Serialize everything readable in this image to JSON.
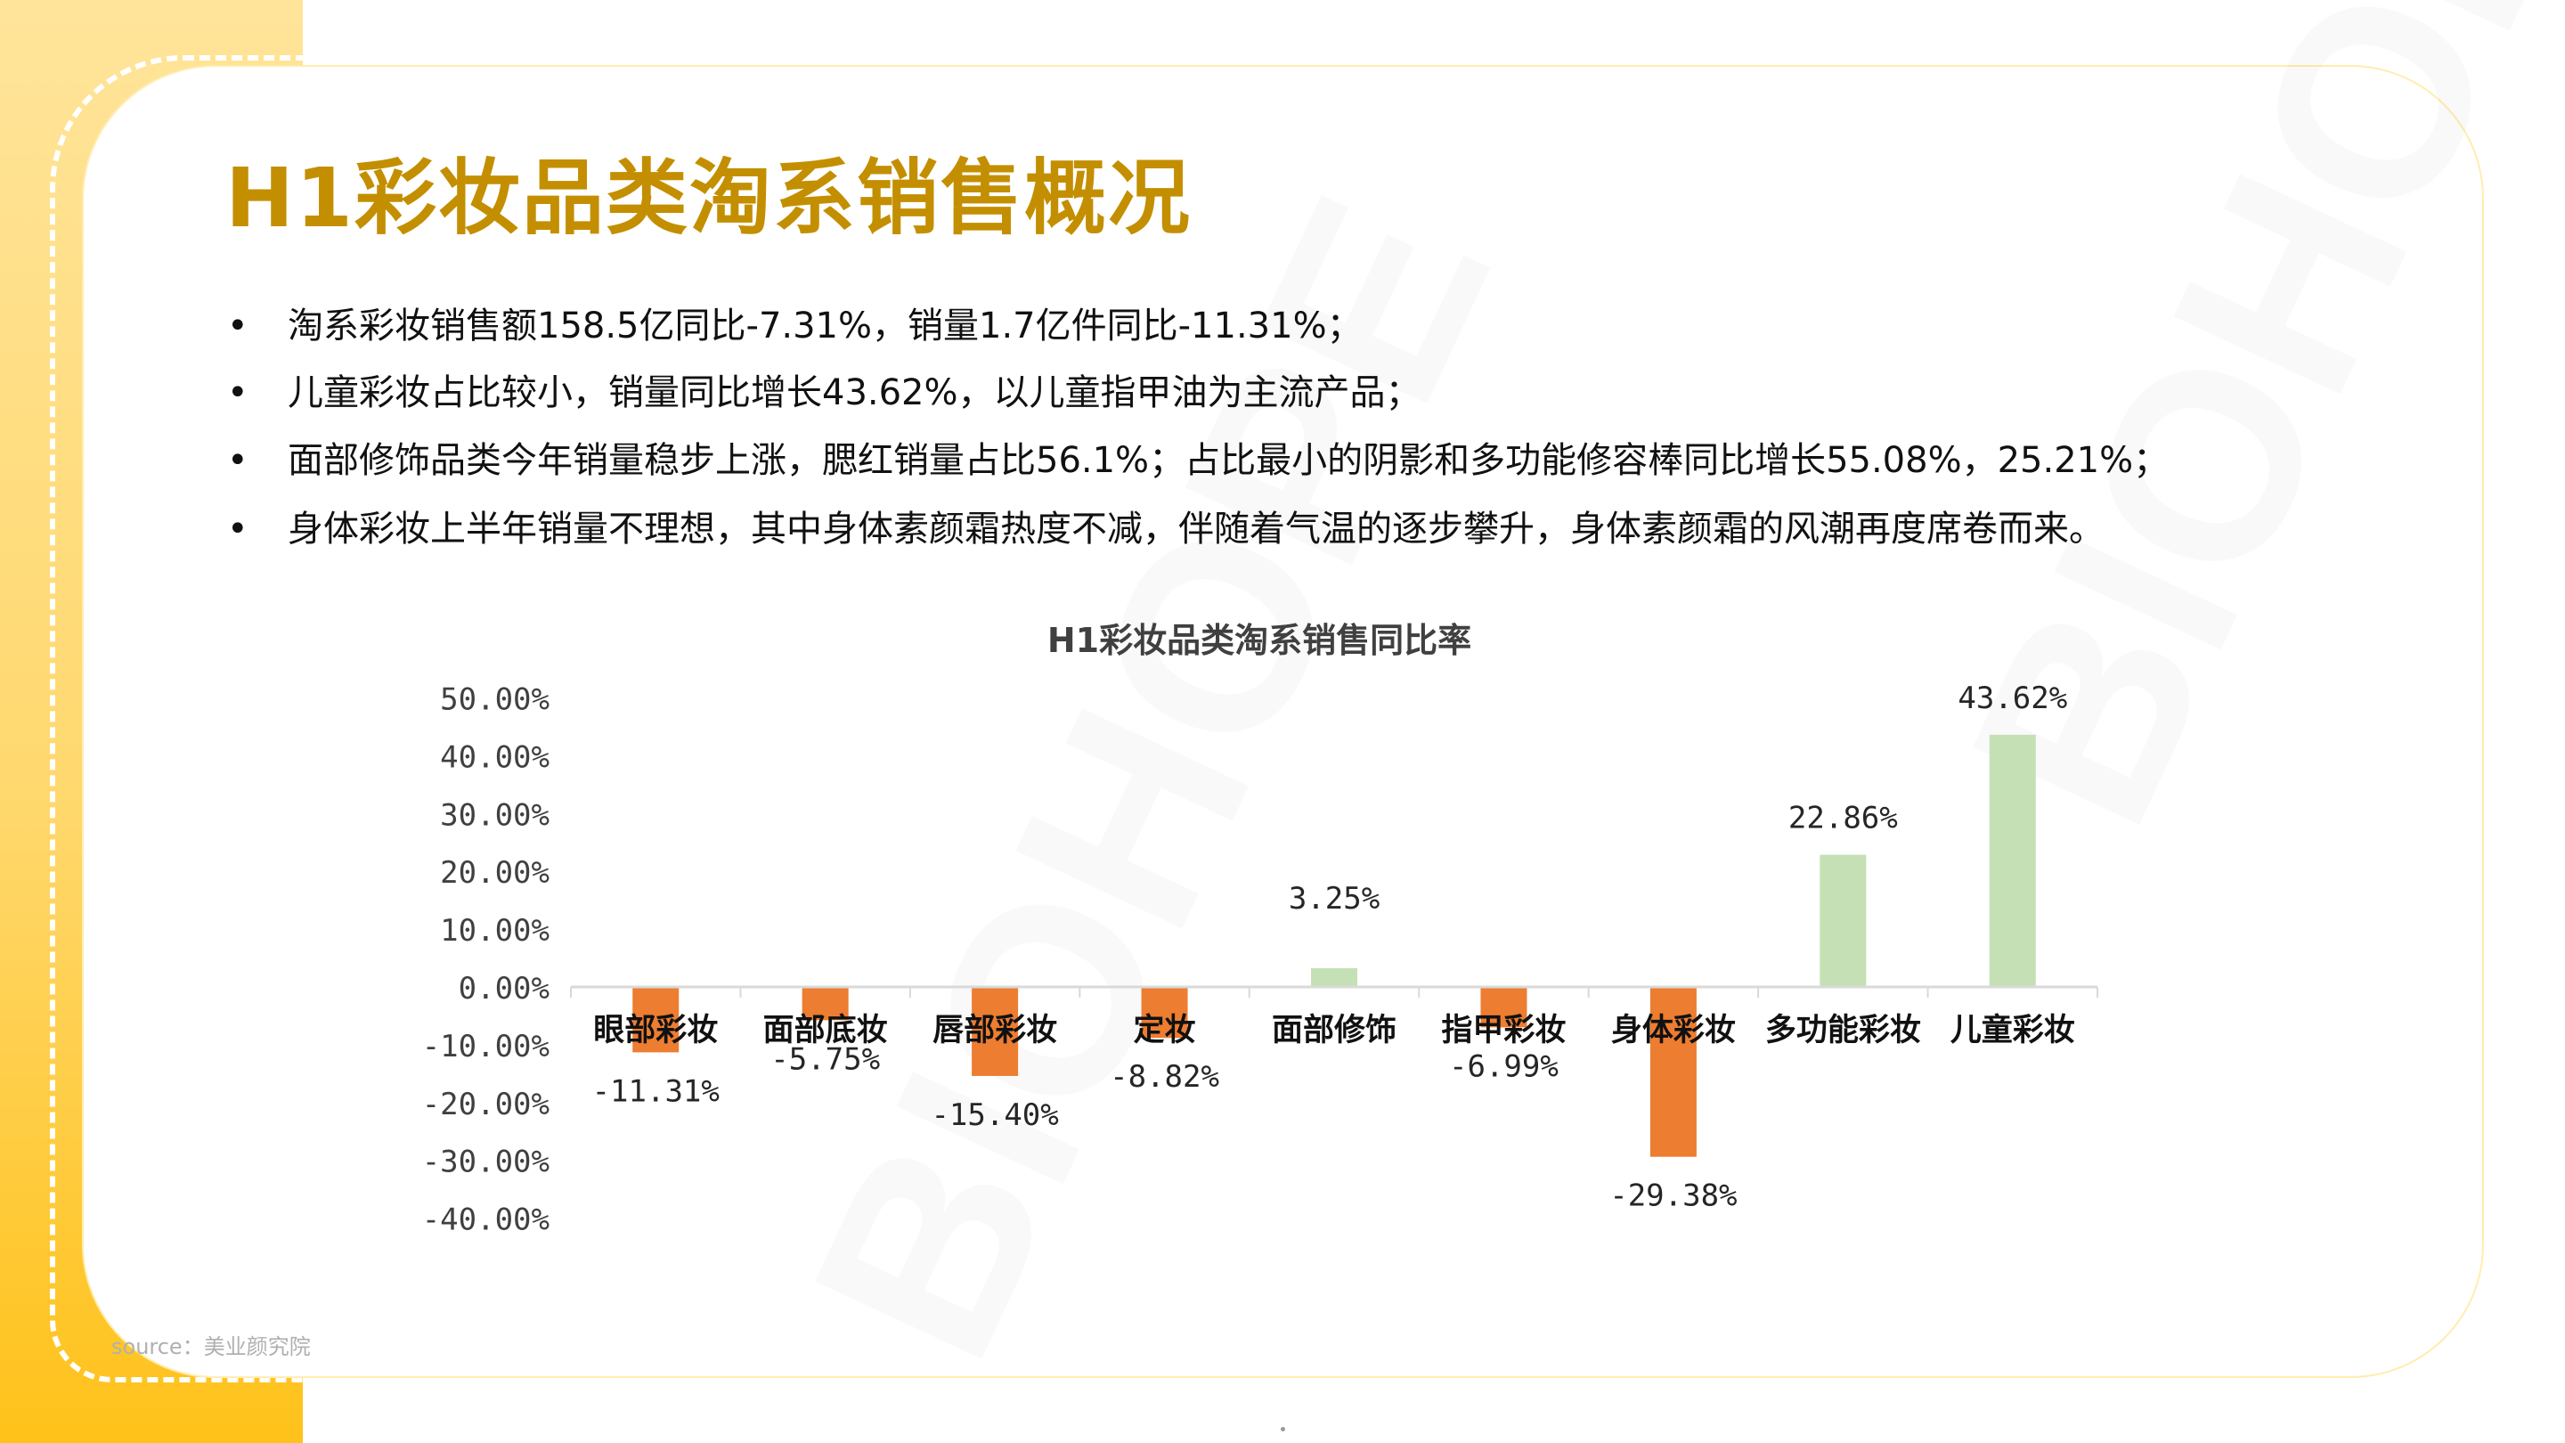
{
  "title": "H1彩妆品类淘系销售概况",
  "bullets": [
    "淘系彩妆销售额158.5亿同比-7.31%，销量1.7亿件同比-11.31%；",
    "儿童彩妆占比较小，销量同比增长43.62%，以儿童指甲油为主流产品；",
    "面部修饰品类今年销量稳步上涨，腮红销量占比56.1%；占比最小的阴影和多功能修容棒同比增长55.08%，25.21%；",
    "身体彩妆上半年销量不理想，其中身体素颜霜热度不减，伴随着气温的逐步攀升，身体素颜霜的风潮再度席卷而来。"
  ],
  "bullet_symbol": "•",
  "source": "source：美业颜究院",
  "watermark": "BIOHOPE",
  "colors": {
    "title": "#C38F00",
    "negative": "#ED7D31",
    "positive": "#C5E0B4"
  },
  "chart_data": {
    "type": "bar",
    "title": "H1彩妆品类淘系销售同比率",
    "categories": [
      "眼部彩妆",
      "面部底妆",
      "唇部彩妆",
      "定妆",
      "面部修饰",
      "指甲彩妆",
      "身体彩妆",
      "多功能彩妆",
      "儿童彩妆"
    ],
    "values": [
      -11.31,
      -5.75,
      -15.4,
      -8.82,
      3.25,
      -6.99,
      -29.38,
      22.86,
      43.62
    ],
    "data_labels": [
      "-11.31%",
      "-5.75%",
      "-15.40%",
      "-8.82%",
      "3.25%",
      "-6.99%",
      "-29.38%",
      "22.86%",
      "43.62%"
    ],
    "ylim": [
      -40,
      50
    ],
    "yticks": [
      50,
      40,
      30,
      20,
      10,
      0,
      -10,
      -20,
      -30,
      -40
    ],
    "ytick_labels": [
      "50.00%",
      "40.00%",
      "30.00%",
      "20.00%",
      "10.00%",
      "0.00%",
      "-10.00%",
      "-20.00%",
      "-30.00%",
      "-40.00%"
    ],
    "grid": false,
    "xlabel": "",
    "ylabel": ""
  }
}
